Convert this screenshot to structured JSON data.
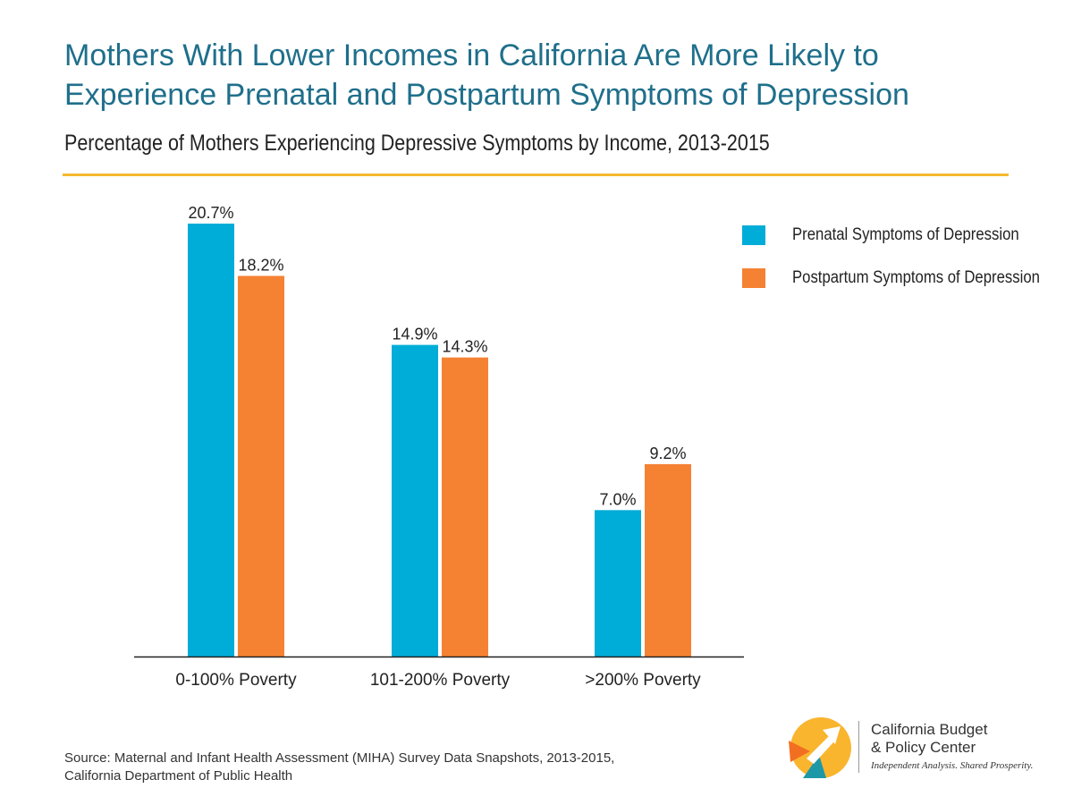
{
  "header": {
    "title_line1": "Mothers With Lower Incomes in California Are More Likely to",
    "title_line2": "Experience Prenatal and Postpartum Symptoms of Depression",
    "subtitle": "Percentage of Mothers Experiencing Depressive Symptoms by Income, 2013-2015"
  },
  "chart_data": {
    "type": "bar",
    "title": "Mothers With Lower Incomes in California Are More Likely to Experience Prenatal and Postpartum Symptoms of Depression",
    "subtitle": "Percentage of Mothers Experiencing Depressive Symptoms by Income, 2013-2015",
    "categories": [
      "0-100% Poverty",
      "101-200% Poverty",
      ">200% Poverty"
    ],
    "series": [
      {
        "name": "Prenatal Symptoms of Depression",
        "values": [
          20.7,
          14.9,
          7.0
        ],
        "labels": [
          "20.7%",
          "14.9%",
          "7.0%"
        ],
        "color": "#00acd8"
      },
      {
        "name": "Postpartum Symptoms of Depression",
        "values": [
          18.2,
          14.3,
          9.2
        ],
        "labels": [
          "18.2%",
          "14.3%",
          "9.2%"
        ],
        "color": "#f58233"
      }
    ],
    "ylim": [
      0,
      22
    ],
    "grid": false,
    "legend_position": "top-right",
    "xlabel": "",
    "ylabel": ""
  },
  "source": {
    "line1": "Source: Maternal and Infant Health Assessment (MIHA) Survey Data Snapshots, 2013-2015,",
    "line2": "California Department of Public Health"
  },
  "logo": {
    "name_line1": "California Budget",
    "name_line2": "& Policy Center",
    "tagline": "Independent Analysis. Shared Prosperity.",
    "colors": {
      "yellow": "#f9b52e",
      "orange": "#f26f21",
      "teal": "#1e98a6"
    }
  },
  "colors": {
    "title": "#1f6f8b",
    "rule": "#f5b92f"
  }
}
